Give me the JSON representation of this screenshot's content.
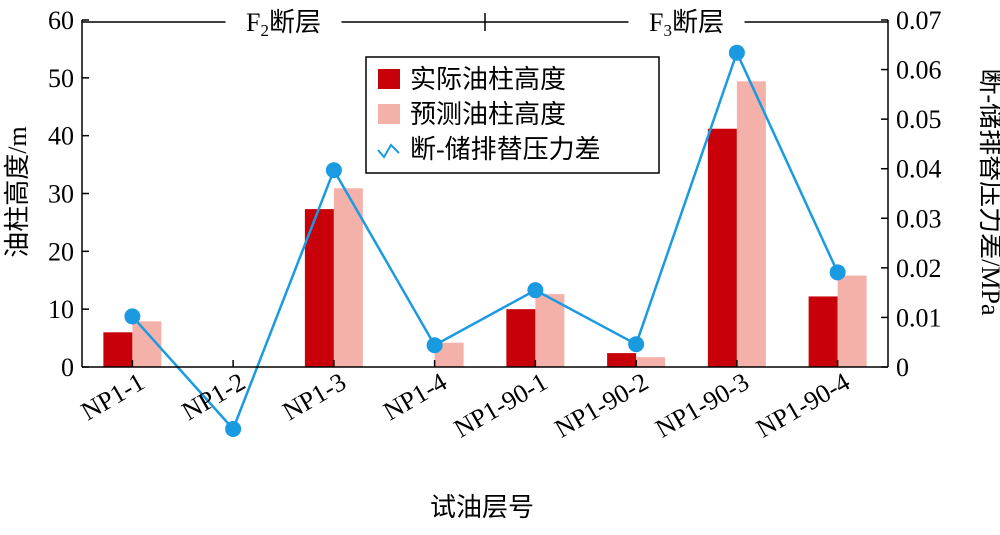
{
  "chart_data": {
    "type": "bar",
    "categories": [
      "NP1-1",
      "NP1-2",
      "NP1-3",
      "NP1-4",
      "NP1-90-1",
      "NP1-90-2",
      "NP1-90-3",
      "NP1-90-4"
    ],
    "series": [
      {
        "name": "实际油柱高度",
        "kind": "bar",
        "axis": "left",
        "color": "#c8000a",
        "values": [
          6,
          0,
          27.3,
          0,
          10,
          2.4,
          41.2,
          12.2
        ]
      },
      {
        "name": "预测油柱高度",
        "kind": "bar",
        "axis": "left",
        "color": "#f4b1aa",
        "values": [
          7.9,
          0,
          30.9,
          4.2,
          12.6,
          1.7,
          49.4,
          15.8
        ]
      },
      {
        "name": "断-储排替压力差",
        "kind": "line",
        "axis": "right",
        "color": "#1a9ae0",
        "values": [
          0.0102,
          -0.0125,
          0.0397,
          0.0044,
          0.0155,
          0.0046,
          0.0634,
          0.0191
        ]
      }
    ],
    "xlabel": "试油层号",
    "ylabel_left": "油柱高度/m",
    "ylabel_right": "断-储排替压力差/MPa",
    "ylim_left": [
      0,
      60
    ],
    "yticks_left": [
      "0",
      "10",
      "20",
      "30",
      "40",
      "50",
      "60"
    ],
    "ylim_right": [
      0,
      0.07
    ],
    "yticks_right": [
      "0",
      "0.01",
      "0.02",
      "0.03",
      "0.04",
      "0.05",
      "0.06",
      "0.07"
    ],
    "fault_groups": [
      {
        "label_main": "F",
        "label_sub": "2",
        "label_suffix": "断层",
        "from_index": 0,
        "to_index": 3
      },
      {
        "label_main": "F",
        "label_sub": "3",
        "label_suffix": "断层",
        "from_index": 4,
        "to_index": 7
      }
    ],
    "legend_position": "top-center",
    "grid": false
  }
}
